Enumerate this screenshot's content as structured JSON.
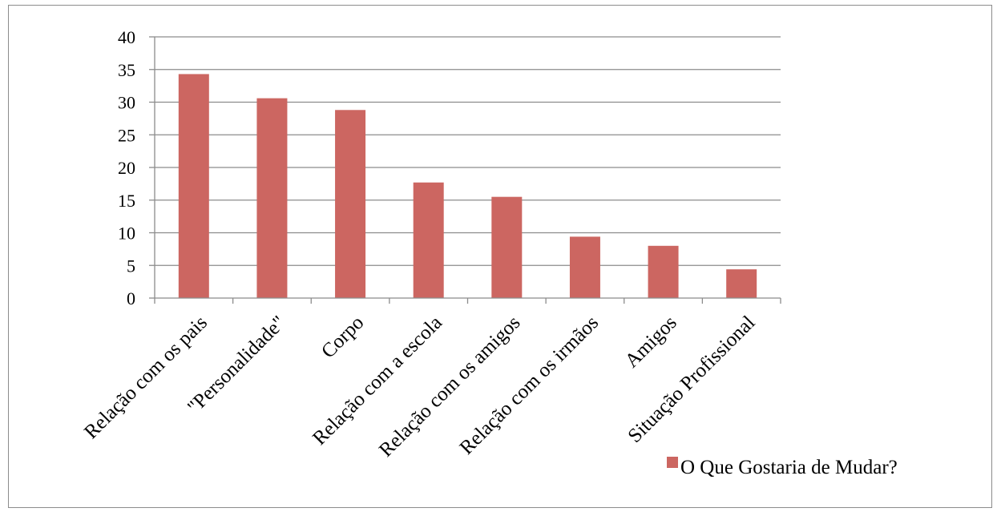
{
  "chart_data": {
    "type": "bar",
    "title": "",
    "xlabel": "",
    "ylabel": "",
    "ylim": [
      0,
      40
    ],
    "yticks": [
      0,
      5,
      10,
      15,
      20,
      25,
      30,
      35,
      40
    ],
    "grid": true,
    "legend_position": "bottom-right",
    "categories": [
      "Relação com os pais",
      "\"Personalidade\"",
      "Corpo",
      "Relação com a escola",
      "Relação com os amigos",
      "Relação com os irmãos",
      "Amigos",
      "Situação Profissional"
    ],
    "series": [
      {
        "name": "O Que Gostaria de Mudar?",
        "color": "#cc6661",
        "values": [
          34.3,
          30.6,
          28.8,
          17.7,
          15.5,
          9.4,
          8.0,
          4.4
        ]
      }
    ]
  }
}
